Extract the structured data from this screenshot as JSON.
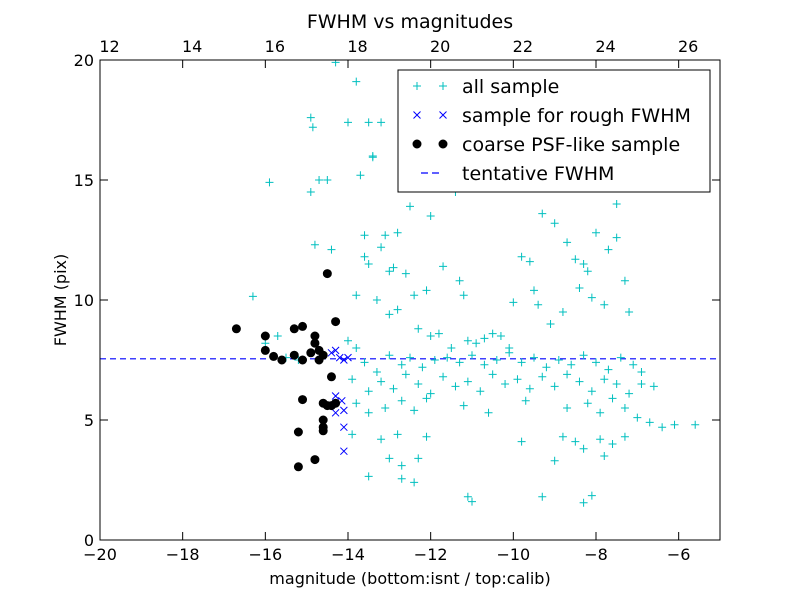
{
  "chart_data": {
    "type": "scatter",
    "title": "FWHM vs magnitudes",
    "xlabel": "magnitude (bottom:isnt / top:calib)",
    "ylabel": "FWHM (pix)",
    "xlim": [
      -20,
      -5
    ],
    "ylim": [
      0,
      20
    ],
    "top_xlim": [
      11.77,
      26.77
    ],
    "grid": false,
    "legend_position": "top-right",
    "bottom_ticks": [
      {
        "value": -20,
        "label": "−20"
      },
      {
        "value": -18,
        "label": "−18"
      },
      {
        "value": -16,
        "label": "−16"
      },
      {
        "value": -14,
        "label": "−14"
      },
      {
        "value": -12,
        "label": "−12"
      },
      {
        "value": -10,
        "label": "−10"
      },
      {
        "value": -8,
        "label": "−8"
      },
      {
        "value": -6,
        "label": "−6"
      }
    ],
    "left_ticks": [
      {
        "value": 0,
        "label": "0"
      },
      {
        "value": 5,
        "label": "5"
      },
      {
        "value": 10,
        "label": "10"
      },
      {
        "value": 15,
        "label": "15"
      },
      {
        "value": 20,
        "label": "20"
      }
    ],
    "top_ticks": [
      {
        "value": 12,
        "label": "12"
      },
      {
        "value": 14,
        "label": "14"
      },
      {
        "value": 16,
        "label": "16"
      },
      {
        "value": 18,
        "label": "18"
      },
      {
        "value": 20,
        "label": "20"
      },
      {
        "value": 22,
        "label": "22"
      },
      {
        "value": 24,
        "label": "24"
      },
      {
        "value": 26,
        "label": "26"
      }
    ],
    "series": [
      {
        "name": "all sample",
        "marker": "plus",
        "color": "#00bfbf",
        "points": [
          [
            -16.3,
            10.15
          ],
          [
            -16.0,
            8.2
          ],
          [
            -15.9,
            14.9
          ],
          [
            -15.7,
            8.5
          ],
          [
            -15.5,
            7.6
          ],
          [
            -15.2,
            7.5
          ],
          [
            -14.9,
            17.6
          ],
          [
            -14.85,
            17.2
          ],
          [
            -14.9,
            14.5
          ],
          [
            -14.8,
            12.3
          ],
          [
            -14.7,
            15.0
          ],
          [
            -14.4,
            12.1
          ],
          [
            -14.5,
            15.0
          ],
          [
            -14.3,
            19.9
          ],
          [
            -14.0,
            17.4
          ],
          [
            -13.8,
            19.1
          ],
          [
            -13.7,
            15.2
          ],
          [
            -13.5,
            17.4
          ],
          [
            -13.4,
            16.0
          ],
          [
            -13.2,
            17.4
          ],
          [
            -13.4,
            15.95
          ],
          [
            -13.6,
            12.7
          ],
          [
            -13.1,
            12.7
          ],
          [
            -13.2,
            12.2
          ],
          [
            -13.6,
            11.8
          ],
          [
            -13.5,
            11.5
          ],
          [
            -13.8,
            10.2
          ],
          [
            -13.3,
            10.0
          ],
          [
            -13.0,
            11.2
          ],
          [
            -12.9,
            11.35
          ],
          [
            -12.6,
            11.1
          ],
          [
            -12.8,
            12.8
          ],
          [
            -12.5,
            13.9
          ],
          [
            -12.0,
            13.5
          ],
          [
            -11.6,
            14.8
          ],
          [
            -11.4,
            14.5
          ],
          [
            -11.0,
            16.5
          ],
          [
            -11.7,
            11.4
          ],
          [
            -11.3,
            10.8
          ],
          [
            -11.2,
            10.2
          ],
          [
            -12.1,
            10.4
          ],
          [
            -12.4,
            10.2
          ],
          [
            -12.8,
            9.6
          ],
          [
            -13.0,
            9.4
          ],
          [
            -12.3,
            8.8
          ],
          [
            -12.0,
            8.5
          ],
          [
            -11.8,
            8.6
          ],
          [
            -11.5,
            8.0
          ],
          [
            -11.1,
            8.3
          ],
          [
            -10.9,
            8.2
          ],
          [
            -10.7,
            8.4
          ],
          [
            -10.5,
            8.6
          ],
          [
            -10.3,
            8.5
          ],
          [
            -10.1,
            8.0
          ],
          [
            -10.0,
            9.9
          ],
          [
            -9.8,
            11.8
          ],
          [
            -9.6,
            11.6
          ],
          [
            -9.5,
            10.4
          ],
          [
            -9.4,
            9.8
          ],
          [
            -9.3,
            13.6
          ],
          [
            -9.0,
            13.2
          ],
          [
            -8.7,
            12.4
          ],
          [
            -8.5,
            11.7
          ],
          [
            -8.3,
            11.5
          ],
          [
            -8.2,
            11.2
          ],
          [
            -8.0,
            12.8
          ],
          [
            -7.7,
            12.1
          ],
          [
            -7.5,
            12.6
          ],
          [
            -7.3,
            10.8
          ],
          [
            -7.2,
            9.5
          ],
          [
            -7.5,
            14.0
          ],
          [
            -7.8,
            9.8
          ],
          [
            -8.1,
            10.1
          ],
          [
            -8.4,
            10.5
          ],
          [
            -8.8,
            9.5
          ],
          [
            -9.1,
            9.0
          ],
          [
            -14.0,
            8.3
          ],
          [
            -13.8,
            8.0
          ],
          [
            -13.6,
            7.4
          ],
          [
            -13.3,
            7.0
          ],
          [
            -13.0,
            7.7
          ],
          [
            -12.7,
            7.3
          ],
          [
            -12.5,
            7.6
          ],
          [
            -12.2,
            7.2
          ],
          [
            -11.9,
            7.5
          ],
          [
            -11.6,
            7.6
          ],
          [
            -11.3,
            7.4
          ],
          [
            -11.0,
            7.7
          ],
          [
            -10.7,
            7.3
          ],
          [
            -10.4,
            7.5
          ],
          [
            -10.1,
            7.8
          ],
          [
            -9.8,
            7.4
          ],
          [
            -9.5,
            7.6
          ],
          [
            -9.2,
            7.2
          ],
          [
            -8.9,
            7.5
          ],
          [
            -8.6,
            7.3
          ],
          [
            -8.3,
            7.7
          ],
          [
            -8.0,
            7.4
          ],
          [
            -7.7,
            7.1
          ],
          [
            -7.4,
            7.6
          ],
          [
            -7.1,
            7.3
          ],
          [
            -6.9,
            7.0
          ],
          [
            -13.9,
            6.7
          ],
          [
            -13.5,
            6.2
          ],
          [
            -13.2,
            6.6
          ],
          [
            -12.9,
            6.3
          ],
          [
            -12.6,
            6.9
          ],
          [
            -12.3,
            6.5
          ],
          [
            -12.0,
            6.1
          ],
          [
            -11.7,
            6.8
          ],
          [
            -11.4,
            6.4
          ],
          [
            -11.1,
            6.6
          ],
          [
            -10.8,
            6.2
          ],
          [
            -10.5,
            6.9
          ],
          [
            -10.2,
            6.5
          ],
          [
            -9.9,
            6.7
          ],
          [
            -9.6,
            6.3
          ],
          [
            -9.3,
            6.8
          ],
          [
            -9.0,
            6.4
          ],
          [
            -8.7,
            6.9
          ],
          [
            -8.4,
            6.6
          ],
          [
            -8.1,
            6.2
          ],
          [
            -7.8,
            6.7
          ],
          [
            -7.5,
            6.5
          ],
          [
            -7.2,
            6.1
          ],
          [
            -6.9,
            6.5
          ],
          [
            -6.6,
            6.4
          ],
          [
            -13.8,
            5.7
          ],
          [
            -13.5,
            5.3
          ],
          [
            -13.1,
            5.5
          ],
          [
            -12.7,
            5.8
          ],
          [
            -12.4,
            5.4
          ],
          [
            -12.1,
            5.9
          ],
          [
            -11.2,
            5.6
          ],
          [
            -10.6,
            5.3
          ],
          [
            -9.7,
            5.8
          ],
          [
            -8.7,
            5.5
          ],
          [
            -8.2,
            5.7
          ],
          [
            -7.9,
            5.3
          ],
          [
            -7.6,
            5.9
          ],
          [
            -7.3,
            5.5
          ],
          [
            -7.0,
            5.1
          ],
          [
            -6.7,
            4.9
          ],
          [
            -6.4,
            4.7
          ],
          [
            -6.1,
            4.8
          ],
          [
            -5.6,
            4.8
          ],
          [
            -13.9,
            4.4
          ],
          [
            -13.2,
            4.2
          ],
          [
            -12.8,
            4.4
          ],
          [
            -12.1,
            4.3
          ],
          [
            -8.8,
            4.3
          ],
          [
            -8.5,
            4.1
          ],
          [
            -7.9,
            4.2
          ],
          [
            -7.6,
            4.0
          ],
          [
            -7.3,
            4.3
          ],
          [
            -8.3,
            3.8
          ],
          [
            -7.8,
            3.5
          ],
          [
            -13.0,
            3.4
          ],
          [
            -12.7,
            3.1
          ],
          [
            -12.3,
            3.4
          ],
          [
            -9.0,
            3.3
          ],
          [
            -13.5,
            2.65
          ],
          [
            -12.7,
            2.55
          ],
          [
            -12.4,
            2.4
          ],
          [
            -11.1,
            1.8
          ],
          [
            -11.0,
            1.6
          ],
          [
            -9.3,
            1.8
          ],
          [
            -8.1,
            1.85
          ],
          [
            -8.3,
            1.55
          ],
          [
            -9.8,
            4.1
          ]
        ]
      },
      {
        "name": "sample for rough FWHM",
        "marker": "x",
        "color": "#0000ff",
        "points": [
          [
            -14.3,
            7.9
          ],
          [
            -14.2,
            7.6
          ],
          [
            -14.1,
            7.5
          ],
          [
            -14.0,
            7.6
          ],
          [
            -14.4,
            7.8
          ],
          [
            -14.3,
            6.0
          ],
          [
            -14.15,
            5.8
          ],
          [
            -14.3,
            5.3
          ],
          [
            -14.1,
            5.4
          ],
          [
            -14.1,
            4.7
          ],
          [
            -14.1,
            3.7
          ]
        ]
      },
      {
        "name": "coarse PSF-like sample",
        "marker": "circle",
        "color": "#000000",
        "points": [
          [
            -16.7,
            8.8
          ],
          [
            -16.0,
            8.5
          ],
          [
            -15.3,
            8.8
          ],
          [
            -15.1,
            8.9
          ],
          [
            -14.8,
            8.5
          ],
          [
            -14.3,
            9.1
          ],
          [
            -16.0,
            7.9
          ],
          [
            -15.8,
            7.65
          ],
          [
            -15.6,
            7.5
          ],
          [
            -15.3,
            7.7
          ],
          [
            -15.1,
            7.5
          ],
          [
            -14.9,
            7.8
          ],
          [
            -14.7,
            7.5
          ],
          [
            -14.8,
            8.2
          ],
          [
            -14.7,
            7.9
          ],
          [
            -14.6,
            7.7
          ],
          [
            -14.4,
            6.8
          ],
          [
            -14.3,
            5.7
          ],
          [
            -14.5,
            5.6
          ],
          [
            -14.6,
            5.7
          ],
          [
            -14.4,
            5.6
          ],
          [
            -15.1,
            5.85
          ],
          [
            -14.6,
            5.0
          ],
          [
            -14.6,
            4.7
          ],
          [
            -14.6,
            4.55
          ],
          [
            -15.2,
            4.5
          ],
          [
            -14.8,
            3.35
          ],
          [
            -15.2,
            3.05
          ],
          [
            -14.5,
            11.1
          ]
        ]
      }
    ],
    "reference_lines": [
      {
        "name": "tentative FWHM",
        "style": "dashed",
        "color": "#0000ff",
        "y": 7.55
      }
    ],
    "legend": [
      {
        "label": "all sample",
        "marker": "plus",
        "color": "#00bfbf"
      },
      {
        "label": "sample for rough FWHM",
        "marker": "x",
        "color": "#0000ff"
      },
      {
        "label": "coarse PSF-like sample",
        "marker": "circle",
        "color": "#000000"
      },
      {
        "label": "tentative FWHM",
        "marker": "dash",
        "color": "#0000ff"
      }
    ]
  }
}
